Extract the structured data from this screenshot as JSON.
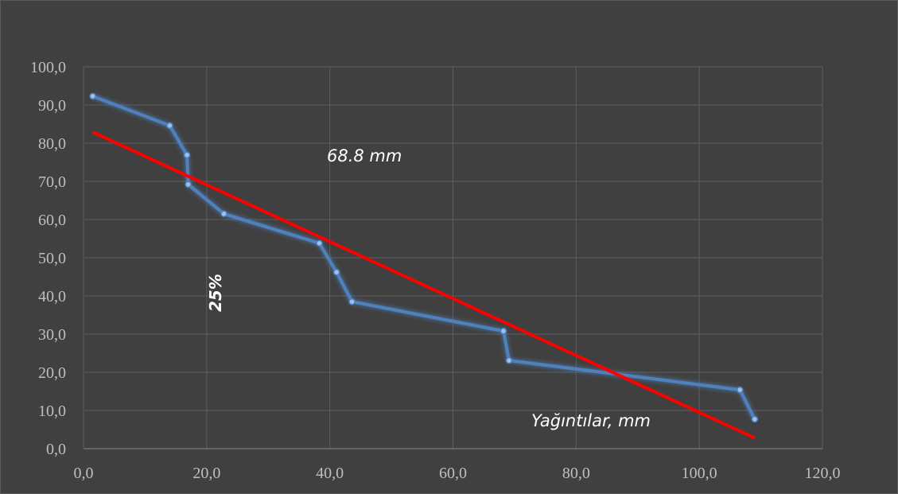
{
  "chart_data": {
    "type": "line",
    "title": "",
    "xlabel": "",
    "ylabel": "",
    "xlim": [
      0,
      120
    ],
    "ylim": [
      0,
      100
    ],
    "x_ticks": [
      "0,0",
      "20,0",
      "40,0",
      "60,0",
      "80,0",
      "100,0",
      "120,0"
    ],
    "y_ticks": [
      "0,0",
      "10,0",
      "20,0",
      "30,0",
      "40,0",
      "50,0",
      "60,0",
      "70,0",
      "80,0",
      "90,0",
      "100,0"
    ],
    "grid": true,
    "series": [
      {
        "color": "#4f81bd",
        "marker": "circle",
        "points": [
          {
            "x": 1.5,
            "y": 92.3
          },
          {
            "x": 14.0,
            "y": 84.6
          },
          {
            "x": 16.8,
            "y": 76.9
          },
          {
            "x": 17.0,
            "y": 69.2
          },
          {
            "x": 22.8,
            "y": 61.5
          },
          {
            "x": 38.3,
            "y": 53.8
          },
          {
            "x": 41.1,
            "y": 46.2
          },
          {
            "x": 43.6,
            "y": 38.5
          },
          {
            "x": 68.2,
            "y": 30.8
          },
          {
            "x": 69.1,
            "y": 23.1
          },
          {
            "x": 106.6,
            "y": 15.4
          },
          {
            "x": 109.0,
            "y": 7.7
          }
        ]
      },
      {
        "color": "#ff0000",
        "kind": "trendline",
        "points": [
          {
            "x": 1.5,
            "y": 82.9
          },
          {
            "x": 109.0,
            "y": 2.8
          }
        ]
      }
    ],
    "annotations": {
      "top_note": "68.8 mm",
      "side_note": "25%",
      "axis_note": "Yağıntılar, mm"
    }
  }
}
